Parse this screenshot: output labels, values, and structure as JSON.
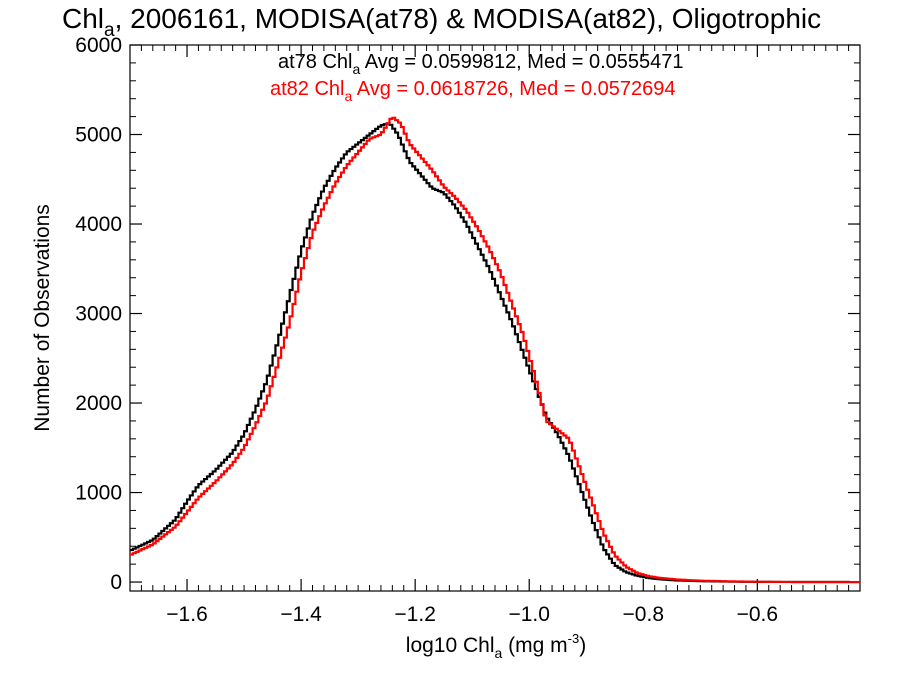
{
  "chart_data": {
    "type": "line",
    "title": {
      "prefix": "Chl",
      "sub": "a",
      "rest": ", 2006161, MODISA(at78) & MODISA(at82), Oligotrophic"
    },
    "xlabel": {
      "prefix": "log10 Chl",
      "sub": "a",
      "mid": " (mg m",
      "sup": "-3",
      "end": ")"
    },
    "ylabel": "Number of Observations",
    "xlim": [
      -1.7,
      -0.42
    ],
    "ylim": [
      -100,
      6000
    ],
    "x_ticks": [
      -1.6,
      -1.4,
      -1.2,
      -1.0,
      -0.8,
      -0.6
    ],
    "x_tick_labels": [
      "−1.6",
      "−1.4",
      "−1.2",
      "−1.0",
      "−0.8",
      "−0.6"
    ],
    "y_ticks": [
      0,
      1000,
      2000,
      3000,
      4000,
      5000,
      6000
    ],
    "y_tick_labels": [
      "0",
      "1000",
      "2000",
      "3000",
      "4000",
      "5000",
      "6000"
    ],
    "grid": false,
    "legend": "top-right",
    "series": [
      {
        "name": "at78",
        "color": "#000000",
        "legend": {
          "prefix": "at78 Chl",
          "sub": "a",
          "rest": " Avg = 0.0599812, Med = 0.0555471"
        },
        "points": [
          [
            -1.7,
            350
          ],
          [
            -1.66,
            470
          ],
          [
            -1.62,
            700
          ],
          [
            -1.6,
            900
          ],
          [
            -1.58,
            1080
          ],
          [
            -1.55,
            1250
          ],
          [
            -1.52,
            1450
          ],
          [
            -1.5,
            1650
          ],
          [
            -1.48,
            1930
          ],
          [
            -1.46,
            2250
          ],
          [
            -1.44,
            2700
          ],
          [
            -1.42,
            3200
          ],
          [
            -1.4,
            3700
          ],
          [
            -1.38,
            4100
          ],
          [
            -1.36,
            4400
          ],
          [
            -1.34,
            4620
          ],
          [
            -1.32,
            4800
          ],
          [
            -1.3,
            4900
          ],
          [
            -1.28,
            5000
          ],
          [
            -1.26,
            5100
          ],
          [
            -1.245,
            5130
          ],
          [
            -1.23,
            5000
          ],
          [
            -1.21,
            4700
          ],
          [
            -1.19,
            4550
          ],
          [
            -1.17,
            4400
          ],
          [
            -1.15,
            4350
          ],
          [
            -1.13,
            4200
          ],
          [
            -1.11,
            4000
          ],
          [
            -1.09,
            3750
          ],
          [
            -1.07,
            3500
          ],
          [
            -1.05,
            3200
          ],
          [
            -1.03,
            2900
          ],
          [
            -1.01,
            2550
          ],
          [
            -0.99,
            2200
          ],
          [
            -0.97,
            1850
          ],
          [
            -0.95,
            1650
          ],
          [
            -0.93,
            1400
          ],
          [
            -0.91,
            1050
          ],
          [
            -0.89,
            700
          ],
          [
            -0.87,
            380
          ],
          [
            -0.85,
            190
          ],
          [
            -0.83,
            110
          ],
          [
            -0.81,
            70
          ],
          [
            -0.79,
            45
          ],
          [
            -0.77,
            30
          ],
          [
            -0.74,
            18
          ],
          [
            -0.7,
            10
          ],
          [
            -0.65,
            5
          ],
          [
            -0.6,
            2
          ],
          [
            -0.55,
            1
          ],
          [
            -0.42,
            0
          ]
        ]
      },
      {
        "name": "at82",
        "color": "#ff0000",
        "legend": {
          "prefix": "at82 Chl",
          "sub": "a",
          "rest": " Avg = 0.0618726, Med = 0.0572694"
        },
        "points": [
          [
            -1.7,
            300
          ],
          [
            -1.66,
            420
          ],
          [
            -1.62,
            620
          ],
          [
            -1.6,
            780
          ],
          [
            -1.58,
            940
          ],
          [
            -1.55,
            1120
          ],
          [
            -1.52,
            1320
          ],
          [
            -1.5,
            1500
          ],
          [
            -1.48,
            1750
          ],
          [
            -1.46,
            2030
          ],
          [
            -1.44,
            2450
          ],
          [
            -1.42,
            2900
          ],
          [
            -1.4,
            3450
          ],
          [
            -1.38,
            3900
          ],
          [
            -1.36,
            4200
          ],
          [
            -1.34,
            4450
          ],
          [
            -1.32,
            4650
          ],
          [
            -1.3,
            4800
          ],
          [
            -1.28,
            4950
          ],
          [
            -1.26,
            5000
          ],
          [
            -1.24,
            5200
          ],
          [
            -1.225,
            5120
          ],
          [
            -1.21,
            4900
          ],
          [
            -1.19,
            4750
          ],
          [
            -1.17,
            4600
          ],
          [
            -1.15,
            4420
          ],
          [
            -1.13,
            4300
          ],
          [
            -1.11,
            4150
          ],
          [
            -1.09,
            3950
          ],
          [
            -1.07,
            3720
          ],
          [
            -1.05,
            3450
          ],
          [
            -1.03,
            3100
          ],
          [
            -1.01,
            2750
          ],
          [
            -0.99,
            2300
          ],
          [
            -0.97,
            1800
          ],
          [
            -0.95,
            1700
          ],
          [
            -0.93,
            1600
          ],
          [
            -0.91,
            1250
          ],
          [
            -0.89,
            900
          ],
          [
            -0.87,
            550
          ],
          [
            -0.85,
            300
          ],
          [
            -0.83,
            170
          ],
          [
            -0.81,
            100
          ],
          [
            -0.79,
            65
          ],
          [
            -0.77,
            45
          ],
          [
            -0.74,
            28
          ],
          [
            -0.7,
            15
          ],
          [
            -0.65,
            8
          ],
          [
            -0.6,
            3
          ],
          [
            -0.55,
            1
          ],
          [
            -0.42,
            0
          ]
        ]
      }
    ]
  }
}
